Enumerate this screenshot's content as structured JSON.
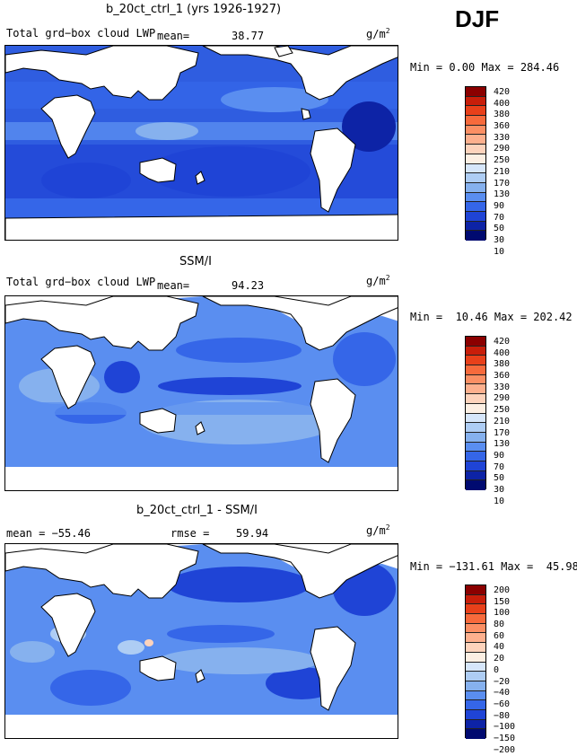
{
  "season": "DJF",
  "panels": [
    {
      "title": "b_20ct_ctrl_1 (yrs 1926-1927)",
      "left_label": "Total grd−box cloud LWP",
      "stat_label": "mean=",
      "stat_value": "38.77",
      "units": "g/m",
      "units_exp": "2",
      "minmax": "Min =    0.00 Max = 284.46",
      "colorbar_levels": [
        "420",
        "400",
        "380",
        "360",
        "330",
        "290",
        "250",
        "210",
        "170",
        "130",
        "90",
        "70",
        "50",
        "30",
        "10"
      ],
      "colorbar_colors": [
        "#8b0000",
        "#c81e0a",
        "#e8401a",
        "#f76a3c",
        "#fb8f64",
        "#fdb08e",
        "#fdd3bc",
        "#fcefe3",
        "#d6e6fa",
        "#aecdf4",
        "#86b1ee",
        "#5a8ef0",
        "#3566e8",
        "#1f44d6",
        "#0d23a6",
        "#000a70"
      ]
    },
    {
      "title": "SSM/I",
      "left_label": "Total grd−box cloud LWP",
      "stat_label": "mean=",
      "stat_value": "94.23",
      "units": "g/m",
      "units_exp": "2",
      "minmax": "Min =  10.46 Max = 202.42",
      "colorbar_levels": [
        "420",
        "400",
        "380",
        "360",
        "330",
        "290",
        "250",
        "210",
        "170",
        "130",
        "90",
        "70",
        "50",
        "30",
        "10"
      ],
      "colorbar_colors": [
        "#8b0000",
        "#c81e0a",
        "#e8401a",
        "#f76a3c",
        "#fb8f64",
        "#fdb08e",
        "#fdd3bc",
        "#fcefe3",
        "#d6e6fa",
        "#aecdf4",
        "#86b1ee",
        "#5a8ef0",
        "#3566e8",
        "#1f44d6",
        "#0d23a6",
        "#000a70"
      ]
    },
    {
      "title": "b_20ct_ctrl_1 - SSM/I",
      "left_label": "mean = −55.46",
      "stat_label": "rmse =",
      "stat_value": "59.94",
      "units": "g/m",
      "units_exp": "2",
      "minmax": "Min = −131.61 Max =  45.98",
      "colorbar_levels": [
        "200",
        "150",
        "100",
        "80",
        "60",
        "40",
        "20",
        "0",
        "−20",
        "−40",
        "−60",
        "−80",
        "−100",
        "−150",
        "−200"
      ],
      "colorbar_colors": [
        "#8b0000",
        "#c81e0a",
        "#e8401a",
        "#f76a3c",
        "#fb8f64",
        "#fdb08e",
        "#fdd3bc",
        "#fcefe3",
        "#d6e6fa",
        "#aecdf4",
        "#86b1ee",
        "#5a8ef0",
        "#3566e8",
        "#1f44d6",
        "#0d23a6",
        "#000a70"
      ]
    }
  ]
}
